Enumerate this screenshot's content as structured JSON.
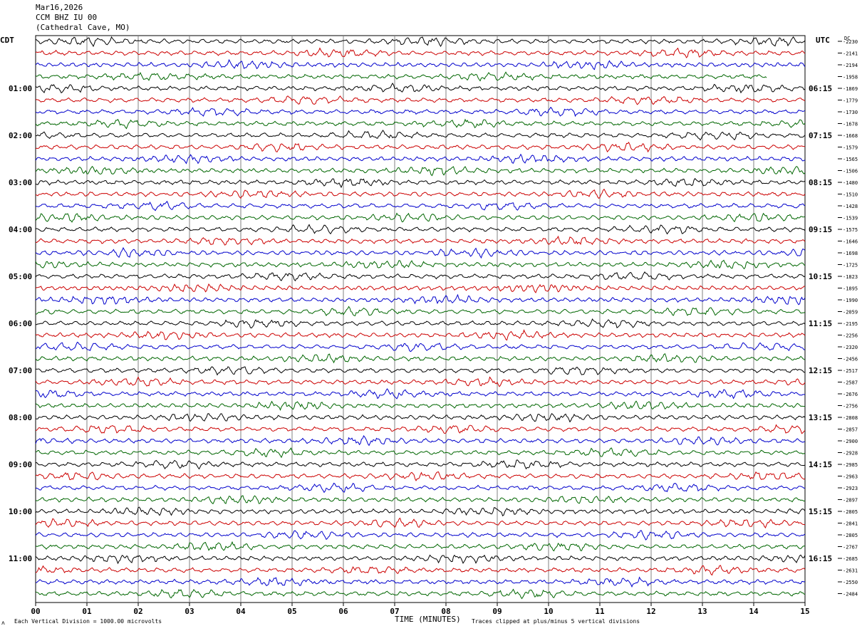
{
  "header": {
    "date": "Mar16,2026",
    "station": "CCM BHZ IU 00",
    "location": "(Cathedral Cave, MO)"
  },
  "left_axis_label": "CDT",
  "right_axis_label": "UTC",
  "dc_label": "DC",
  "footer": {
    "scale_note": "Each Vertical Division = 1000.00 microvolts",
    "clip_note": "Traces clipped at plus/minus 5 vertical divisions",
    "corner_mark": "ʌ"
  },
  "colors": {
    "trace_cycle": [
      "#000000",
      "#cc0000",
      "#0000cc",
      "#006600"
    ],
    "grid": "#808080"
  },
  "chart_data": {
    "type": "line",
    "title": "CCM BHZ IU 00",
    "xlabel": "TIME (MINUTES)",
    "ylabel": "",
    "xlim": [
      0,
      15
    ],
    "x_ticks": [
      "00",
      "01",
      "02",
      "03",
      "04",
      "05",
      "06",
      "07",
      "08",
      "09",
      "10",
      "11",
      "12",
      "13",
      "14",
      "15"
    ],
    "traces_per_hour": 4,
    "minutes_per_trace": 15,
    "rows_shown": 48,
    "last_row_fraction": 1.0,
    "row3_end_fraction": 0.95,
    "left_hour_labels": [
      "01:00",
      "02:00",
      "03:00",
      "04:00",
      "05:00",
      "06:00",
      "07:00",
      "08:00",
      "09:00",
      "10:00",
      "11:00"
    ],
    "right_hour_labels": [
      "06:15",
      "07:15",
      "08:15",
      "09:15",
      "10:15",
      "11:15",
      "12:15",
      "13:15",
      "14:15",
      "15:15",
      "16:15"
    ],
    "hour_label_rows": [
      4,
      8,
      12,
      16,
      20,
      24,
      28,
      32,
      36,
      40,
      44
    ],
    "dc_offsets": [
      "-2230",
      "-2141",
      "-2194",
      "-1958",
      "-1869",
      "-1779",
      "-1730",
      "-1678",
      "-1668",
      "-1579",
      "-1565",
      "-1506",
      "-1480",
      "-1510",
      "-1428",
      "-1539",
      "-1575",
      "-1646",
      "-1698",
      "-1725",
      "-1823",
      "-1895",
      "-1990",
      "-2059",
      "-2195",
      "-2256",
      "-2320",
      "-2456",
      "-2517",
      "-2587",
      "-2676",
      "-2756",
      "-2808",
      "-2857",
      "-2900",
      "-2928",
      "-2985",
      "-2963",
      "-2923",
      "-2897",
      "-2805",
      "-2841",
      "-2805",
      "-2767",
      "-2685",
      "-2631",
      "-2550",
      "-2484"
    ]
  }
}
